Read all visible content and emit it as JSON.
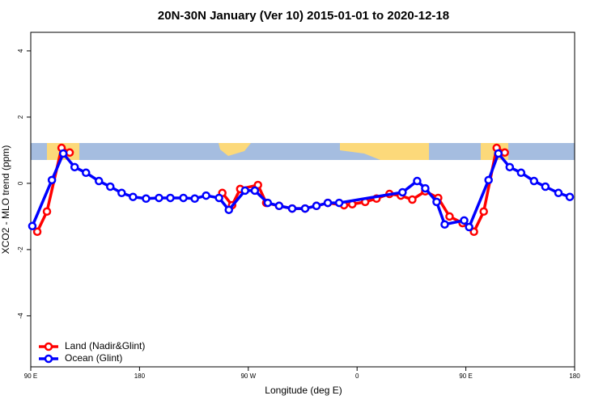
{
  "chart_data": {
    "type": "line",
    "title": "20N-30N January (Ver 10)   2015-01-01 to 2020-12-18",
    "x_label": "Longitude (deg E)",
    "y_label": "XCO2 - MLO trend (ppm)",
    "xlim": [
      90,
      540
    ],
    "xticks": [
      {
        "value": 90,
        "label": "90 E"
      },
      180,
      {
        "value": 270,
        "label": "90 W"
      },
      {
        "value": 360,
        "label": "0"
      },
      {
        "value": 450,
        "label": "90 E"
      },
      {
        "value": 540,
        "label": "180"
      }
    ],
    "ylim": [
      -5.54,
      4.56
    ],
    "yticks": [
      -4,
      -2,
      0,
      2,
      4
    ],
    "legend": "bottom-left",
    "series": [
      {
        "name": "Land (Nadir&Glint)",
        "color": "#ff0000",
        "x": [
          95.4,
          103.4,
          115.5,
          122.2,
          200,
          248.5,
          256.6,
          263.3,
          278.0,
          284.8,
          295.5,
          306.3,
          317.0,
          326.4,
          335.8,
          349.2,
          356.0,
          366.7,
          376.1,
          386.8,
          396.2,
          405.7,
          416.4,
          427.1,
          436.5,
          447.3,
          456.7,
          464.8,
          475.5,
          482.2
        ],
        "values": [
          -1.46,
          -0.85,
          1.07,
          0.93,
          null,
          -0.29,
          -0.66,
          -0.17,
          -0.05,
          -0.59,
          -0.68,
          -0.76,
          -0.76,
          -0.68,
          -0.59,
          -0.66,
          -0.63,
          -0.56,
          -0.46,
          -0.32,
          -0.37,
          -0.49,
          -0.24,
          -0.44,
          -1.0,
          -1.2,
          -1.46,
          -0.85,
          1.07,
          0.93
        ]
      },
      {
        "name": "Ocean (Glint)",
        "color": "#0000ff",
        "x": [
          91.3,
          107.5,
          116.9,
          126.3,
          135.7,
          146.4,
          155.8,
          165.2,
          174.6,
          185.4,
          196.1,
          205.5,
          216.3,
          225.7,
          235.1,
          245.8,
          253.9,
          267.3,
          275.4,
          286.1,
          295.5,
          306.3,
          317.0,
          326.4,
          335.8,
          345.2,
          397.6,
          409.7,
          416.4,
          425.8,
          432.5,
          448.6,
          452.7,
          468.8,
          476.9,
          486.3,
          495.7,
          506.4,
          515.8,
          526.6,
          536.0
        ],
        "values": [
          -1.29,
          0.1,
          0.9,
          0.49,
          0.32,
          0.07,
          -0.1,
          -0.29,
          -0.41,
          -0.46,
          -0.44,
          -0.44,
          -0.44,
          -0.46,
          -0.37,
          -0.44,
          -0.8,
          -0.22,
          -0.22,
          -0.59,
          -0.68,
          -0.76,
          -0.76,
          -0.68,
          -0.59,
          -0.59,
          -0.27,
          0.07,
          -0.15,
          -0.56,
          -1.24,
          -1.12,
          -1.32,
          0.1,
          0.9,
          0.49,
          0.32,
          0.07,
          -0.1,
          -0.29,
          -0.41
        ]
      }
    ]
  }
}
